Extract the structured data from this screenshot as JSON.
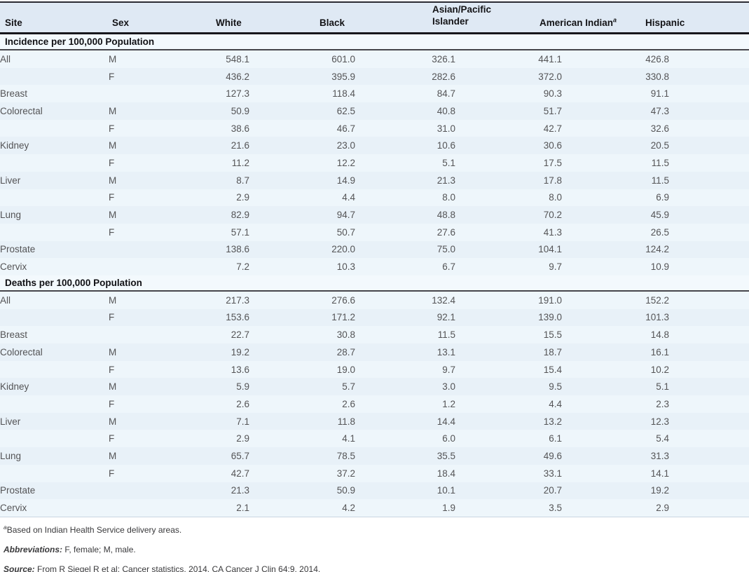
{
  "table": {
    "columns": {
      "site": "Site",
      "sex": "Sex",
      "white": "White",
      "black": "Black",
      "api": "Asian/Pacific Islander",
      "american_indian": "American Indian",
      "american_indian_sup": "a",
      "hispanic": "Hispanic"
    },
    "sections": [
      {
        "title": "Incidence per 100,000 Population",
        "rows": [
          [
            "All",
            "M",
            "548.1",
            "601.0",
            "326.1",
            "441.1",
            "426.8"
          ],
          [
            "",
            "F",
            "436.2",
            "395.9",
            "282.6",
            "372.0",
            "330.8"
          ],
          [
            "Breast",
            "",
            "127.3",
            "118.4",
            "84.7",
            "90.3",
            "91.1"
          ],
          [
            "Colorectal",
            "M",
            "50.9",
            "62.5",
            "40.8",
            "51.7",
            "47.3"
          ],
          [
            "",
            "F",
            "38.6",
            "46.7",
            "31.0",
            "42.7",
            "32.6"
          ],
          [
            "Kidney",
            "M",
            "21.6",
            "23.0",
            "10.6",
            "30.6",
            "20.5"
          ],
          [
            "",
            "F",
            "11.2",
            "12.2",
            "5.1",
            "17.5",
            "11.5"
          ],
          [
            "Liver",
            "M",
            "8.7",
            "14.9",
            "21.3",
            "17.8",
            "11.5"
          ],
          [
            "",
            "F",
            "2.9",
            "4.4",
            "8.0",
            "8.0",
            "6.9"
          ],
          [
            "Lung",
            "M",
            "82.9",
            "94.7",
            "48.8",
            "70.2",
            "45.9"
          ],
          [
            "",
            "F",
            "57.1",
            "50.7",
            "27.6",
            "41.3",
            "26.5"
          ],
          [
            "Prostate",
            "",
            "138.6",
            "220.0",
            "75.0",
            "104.1",
            "124.2"
          ],
          [
            "Cervix",
            "",
            "7.2",
            "10.3",
            "6.7",
            "9.7",
            "10.9"
          ]
        ]
      },
      {
        "title": "Deaths per 100,000 Population",
        "rows": [
          [
            "All",
            "M",
            "217.3",
            "276.6",
            "132.4",
            "191.0",
            "152.2"
          ],
          [
            "",
            "F",
            "153.6",
            "171.2",
            "92.1",
            "139.0",
            "101.3"
          ],
          [
            "Breast",
            "",
            "22.7",
            "30.8",
            "11.5",
            "15.5",
            "14.8"
          ],
          [
            "Colorectal",
            "M",
            "19.2",
            "28.7",
            "13.1",
            "18.7",
            "16.1"
          ],
          [
            "",
            "F",
            "13.6",
            "19.0",
            "9.7",
            "15.4",
            "10.2"
          ],
          [
            "Kidney",
            "M",
            "5.9",
            "5.7",
            "3.0",
            "9.5",
            "5.1"
          ],
          [
            "",
            "F",
            "2.6",
            "2.6",
            "1.2",
            "4.4",
            "2.3"
          ],
          [
            "Liver",
            "M",
            "7.1",
            "11.8",
            "14.4",
            "13.2",
            "12.3"
          ],
          [
            "",
            "F",
            "2.9",
            "4.1",
            "6.0",
            "6.1",
            "5.4"
          ],
          [
            "Lung",
            "M",
            "65.7",
            "78.5",
            "35.5",
            "49.6",
            "31.3"
          ],
          [
            "",
            "F",
            "42.7",
            "37.2",
            "18.4",
            "33.1",
            "14.1"
          ],
          [
            "Prostate",
            "",
            "21.3",
            "50.9",
            "10.1",
            "20.7",
            "19.2"
          ],
          [
            "Cervix",
            "",
            "2.1",
            "4.2",
            "1.9",
            "3.5",
            "2.9"
          ]
        ]
      }
    ]
  },
  "footnotes": {
    "note_a_marker": "a",
    "note_a_text": "Based on Indian Health Service delivery areas.",
    "abbreviations_label": "Abbreviations:",
    "abbreviations_text": " F, female; M, male.",
    "source_label": "Source:",
    "source_text": " From R Siegel R et al: Cancer statistics, 2014. CA Cancer J Clin 64:9, 2014."
  },
  "colors": {
    "header_band": "#dfe9f4",
    "section_band": "#f3f9fd",
    "row_light": "#eef6fb",
    "row_dark": "#e8f1f8",
    "rule_dark": "#17171c",
    "text_grey": "#545456"
  }
}
